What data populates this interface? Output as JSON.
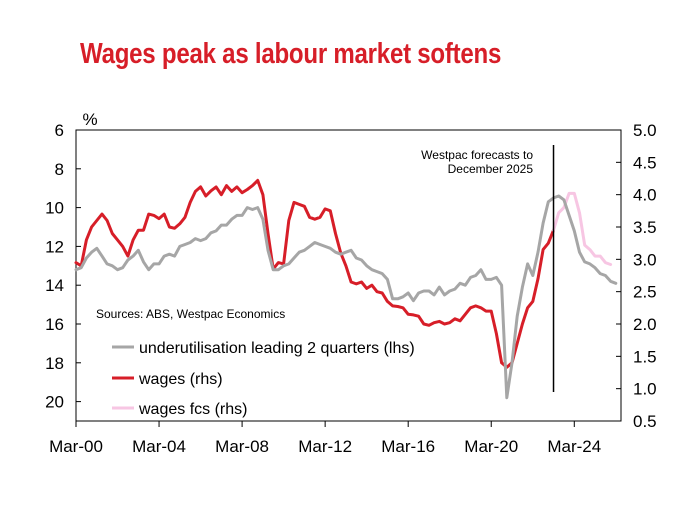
{
  "chart_data": {
    "type": "line",
    "title": "Wages peak as labour market softens",
    "y_left": {
      "label": "%",
      "range": [
        6,
        21
      ],
      "inverted": true,
      "ticks": [
        "6",
        "8",
        "10",
        "12",
        "14",
        "16",
        "18",
        "20"
      ]
    },
    "y_right": {
      "range": [
        0.5,
        5.0
      ],
      "ticks": [
        "5.0",
        "4.5",
        "4.0",
        "3.5",
        "3.0",
        "2.5",
        "2.0",
        "1.5",
        "1.0",
        "0.5"
      ]
    },
    "x_axis": {
      "range": [
        "Mar-00",
        "Dec-25"
      ],
      "ticks": [
        "Mar-00",
        "Mar-04",
        "Mar-08",
        "Mar-12",
        "Mar-16",
        "Mar-20",
        "Mar-24"
      ]
    },
    "source_note": "Sources: ABS, Westpac Economics",
    "annotation": {
      "text_lines": [
        "Westpac forecasts to",
        "December 2025"
      ],
      "marker_at": 2023.0
    },
    "grid": false,
    "legend_position": "lower-left",
    "series": [
      {
        "name": "underutilisation leading 2 quarters (lhs)",
        "axis": "left",
        "color": "#a6a6a6",
        "points": [
          [
            2000.0,
            13.2
          ],
          [
            2000.25,
            13.1
          ],
          [
            2000.5,
            12.6
          ],
          [
            2000.75,
            12.3
          ],
          [
            2001.0,
            12.1
          ],
          [
            2001.25,
            12.5
          ],
          [
            2001.5,
            12.9
          ],
          [
            2001.75,
            13.0
          ],
          [
            2002.0,
            13.2
          ],
          [
            2002.25,
            13.1
          ],
          [
            2002.5,
            12.7
          ],
          [
            2002.75,
            12.5
          ],
          [
            2003.0,
            12.2
          ],
          [
            2003.25,
            12.8
          ],
          [
            2003.5,
            13.2
          ],
          [
            2003.75,
            12.9
          ],
          [
            2004.0,
            12.9
          ],
          [
            2004.25,
            12.5
          ],
          [
            2004.5,
            12.4
          ],
          [
            2004.75,
            12.5
          ],
          [
            2005.0,
            12.0
          ],
          [
            2005.25,
            11.9
          ],
          [
            2005.5,
            11.8
          ],
          [
            2005.75,
            11.6
          ],
          [
            2006.0,
            11.7
          ],
          [
            2006.25,
            11.6
          ],
          [
            2006.5,
            11.3
          ],
          [
            2006.75,
            11.2
          ],
          [
            2007.0,
            10.9
          ],
          [
            2007.25,
            10.9
          ],
          [
            2007.5,
            10.6
          ],
          [
            2007.75,
            10.4
          ],
          [
            2008.0,
            10.4
          ],
          [
            2008.25,
            10.0
          ],
          [
            2008.5,
            10.1
          ],
          [
            2008.75,
            10.0
          ],
          [
            2009.0,
            10.6
          ],
          [
            2009.25,
            12.2
          ],
          [
            2009.5,
            13.2
          ],
          [
            2009.75,
            13.2
          ],
          [
            2010.0,
            13.0
          ],
          [
            2010.25,
            12.9
          ],
          [
            2010.5,
            12.6
          ],
          [
            2010.75,
            12.3
          ],
          [
            2011.0,
            12.2
          ],
          [
            2011.25,
            12.0
          ],
          [
            2011.5,
            11.8
          ],
          [
            2011.75,
            11.9
          ],
          [
            2012.0,
            12.0
          ],
          [
            2012.25,
            12.1
          ],
          [
            2012.5,
            12.3
          ],
          [
            2012.75,
            12.4
          ],
          [
            2013.0,
            12.3
          ],
          [
            2013.25,
            12.2
          ],
          [
            2013.5,
            12.6
          ],
          [
            2013.75,
            12.7
          ],
          [
            2014.0,
            13.0
          ],
          [
            2014.25,
            13.2
          ],
          [
            2014.5,
            13.3
          ],
          [
            2014.75,
            13.4
          ],
          [
            2015.0,
            13.7
          ],
          [
            2015.25,
            14.7
          ],
          [
            2015.5,
            14.7
          ],
          [
            2015.75,
            14.6
          ],
          [
            2016.0,
            14.4
          ],
          [
            2016.25,
            14.8
          ],
          [
            2016.5,
            14.4
          ],
          [
            2016.75,
            14.3
          ],
          [
            2017.0,
            14.3
          ],
          [
            2017.25,
            14.5
          ],
          [
            2017.5,
            14.1
          ],
          [
            2017.75,
            14.5
          ],
          [
            2018.0,
            14.3
          ],
          [
            2018.25,
            14.2
          ],
          [
            2018.5,
            13.9
          ],
          [
            2018.75,
            14.0
          ],
          [
            2019.0,
            13.6
          ],
          [
            2019.25,
            13.5
          ],
          [
            2019.5,
            13.2
          ],
          [
            2019.75,
            13.7
          ],
          [
            2020.0,
            13.7
          ],
          [
            2020.25,
            13.6
          ],
          [
            2020.5,
            14.0
          ],
          [
            2020.75,
            19.8
          ],
          [
            2021.0,
            18.0
          ],
          [
            2021.25,
            15.6
          ],
          [
            2021.5,
            14.1
          ],
          [
            2021.75,
            12.9
          ],
          [
            2022.0,
            13.5
          ],
          [
            2022.25,
            12.3
          ],
          [
            2022.5,
            10.8
          ],
          [
            2022.75,
            9.7
          ],
          [
            2023.0,
            9.5
          ],
          [
            2023.25,
            9.4
          ],
          [
            2023.5,
            9.6
          ],
          [
            2023.75,
            10.4
          ],
          [
            2024.0,
            11.2
          ],
          [
            2024.25,
            12.3
          ],
          [
            2024.5,
            12.8
          ],
          [
            2024.75,
            12.9
          ],
          [
            2025.0,
            13.1
          ],
          [
            2025.25,
            13.4
          ],
          [
            2025.5,
            13.5
          ],
          [
            2025.75,
            13.8
          ],
          [
            2026.0,
            13.9
          ]
        ]
      },
      {
        "name": "wages (rhs)",
        "axis": "right",
        "color": "#d71e28",
        "points": [
          [
            2000.0,
            2.95
          ],
          [
            2000.25,
            2.9
          ],
          [
            2000.5,
            3.3
          ],
          [
            2000.75,
            3.5
          ],
          [
            2001.0,
            3.6
          ],
          [
            2001.25,
            3.7
          ],
          [
            2001.5,
            3.6
          ],
          [
            2001.75,
            3.4
          ],
          [
            2002.0,
            3.3
          ],
          [
            2002.25,
            3.2
          ],
          [
            2002.5,
            3.05
          ],
          [
            2002.75,
            3.3
          ],
          [
            2003.0,
            3.45
          ],
          [
            2003.25,
            3.45
          ],
          [
            2003.5,
            3.7
          ],
          [
            2003.75,
            3.68
          ],
          [
            2004.0,
            3.63
          ],
          [
            2004.25,
            3.7
          ],
          [
            2004.5,
            3.5
          ],
          [
            2004.75,
            3.48
          ],
          [
            2005.0,
            3.55
          ],
          [
            2005.25,
            3.65
          ],
          [
            2005.5,
            3.88
          ],
          [
            2005.75,
            4.05
          ],
          [
            2006.0,
            4.12
          ],
          [
            2006.25,
            3.98
          ],
          [
            2006.5,
            4.06
          ],
          [
            2006.75,
            4.12
          ],
          [
            2007.0,
            4.0
          ],
          [
            2007.25,
            4.14
          ],
          [
            2007.5,
            4.05
          ],
          [
            2007.75,
            4.12
          ],
          [
            2008.0,
            4.03
          ],
          [
            2008.25,
            4.08
          ],
          [
            2008.5,
            4.14
          ],
          [
            2008.75,
            4.22
          ],
          [
            2009.0,
            4.0
          ],
          [
            2009.25,
            3.4
          ],
          [
            2009.5,
            2.85
          ],
          [
            2009.75,
            2.95
          ],
          [
            2010.0,
            2.93
          ],
          [
            2010.25,
            3.6
          ],
          [
            2010.5,
            3.88
          ],
          [
            2010.75,
            3.85
          ],
          [
            2011.0,
            3.82
          ],
          [
            2011.25,
            3.65
          ],
          [
            2011.5,
            3.62
          ],
          [
            2011.75,
            3.65
          ],
          [
            2012.0,
            3.78
          ],
          [
            2012.25,
            3.75
          ],
          [
            2012.5,
            3.4
          ],
          [
            2012.75,
            3.1
          ],
          [
            2013.0,
            2.9
          ],
          [
            2013.25,
            2.65
          ],
          [
            2013.5,
            2.62
          ],
          [
            2013.75,
            2.65
          ],
          [
            2014.0,
            2.55
          ],
          [
            2014.25,
            2.6
          ],
          [
            2014.5,
            2.5
          ],
          [
            2014.75,
            2.48
          ],
          [
            2015.0,
            2.35
          ],
          [
            2015.25,
            2.28
          ],
          [
            2015.5,
            2.27
          ],
          [
            2015.75,
            2.25
          ],
          [
            2016.0,
            2.15
          ],
          [
            2016.25,
            2.14
          ],
          [
            2016.5,
            2.12
          ],
          [
            2016.75,
            2.0
          ],
          [
            2017.0,
            1.98
          ],
          [
            2017.25,
            2.02
          ],
          [
            2017.5,
            2.04
          ],
          [
            2017.75,
            2.0
          ],
          [
            2018.0,
            2.02
          ],
          [
            2018.25,
            2.08
          ],
          [
            2018.5,
            2.05
          ],
          [
            2018.75,
            2.15
          ],
          [
            2019.0,
            2.25
          ],
          [
            2019.25,
            2.28
          ],
          [
            2019.5,
            2.25
          ],
          [
            2019.75,
            2.2
          ],
          [
            2020.0,
            2.2
          ],
          [
            2020.25,
            1.85
          ],
          [
            2020.5,
            1.4
          ],
          [
            2020.75,
            1.33
          ],
          [
            2021.0,
            1.4
          ],
          [
            2021.25,
            1.7
          ],
          [
            2021.5,
            2.0
          ],
          [
            2021.75,
            2.25
          ],
          [
            2022.0,
            2.35
          ],
          [
            2022.25,
            2.7
          ],
          [
            2022.5,
            3.15
          ],
          [
            2022.75,
            3.25
          ],
          [
            2023.0,
            3.45
          ]
        ]
      },
      {
        "name": "wages fcs (rhs)",
        "axis": "right",
        "color": "#f7c6e3",
        "points": [
          [
            2023.0,
            3.45
          ],
          [
            2023.25,
            3.72
          ],
          [
            2023.5,
            3.8
          ],
          [
            2023.75,
            4.02
          ],
          [
            2024.0,
            4.02
          ],
          [
            2024.25,
            3.72
          ],
          [
            2024.5,
            3.22
          ],
          [
            2024.75,
            3.15
          ],
          [
            2025.0,
            3.05
          ],
          [
            2025.25,
            3.05
          ],
          [
            2025.5,
            2.95
          ],
          [
            2025.75,
            2.92
          ]
        ]
      }
    ]
  }
}
